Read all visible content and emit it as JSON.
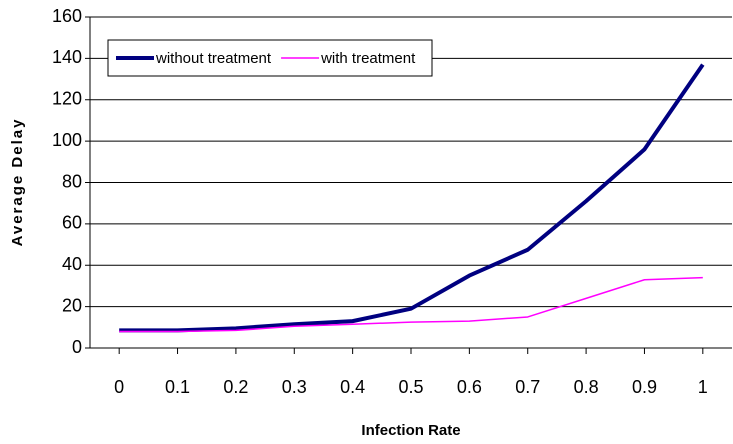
{
  "chart_data": {
    "type": "line",
    "x_label": "Infection Rate",
    "y_label": "Average Delay",
    "x": [
      0,
      0.1,
      0.2,
      0.3,
      0.4,
      0.5,
      0.6,
      0.7,
      0.8,
      0.9,
      1
    ],
    "series": [
      {
        "name": "without treatment",
        "color": "#000080",
        "values": [
          8.5,
          8.5,
          9.5,
          11.5,
          13,
          19,
          35,
          47.5,
          71,
          96,
          137
        ]
      },
      {
        "name": "with treatment",
        "color": "#ff00ff",
        "values": [
          8,
          8,
          8.5,
          10.5,
          11.5,
          12.5,
          13,
          15,
          24,
          33,
          34
        ]
      }
    ],
    "xlim": [
      -0.05,
      1.05
    ],
    "xticks": [
      0,
      0.1,
      0.2,
      0.3,
      0.4,
      0.5,
      0.6,
      0.7,
      0.8,
      0.9,
      1
    ],
    "ylim": [
      0,
      160
    ],
    "yticks": [
      0,
      20,
      40,
      60,
      80,
      100,
      120,
      140,
      160
    ],
    "grid": true,
    "legend": "upper left"
  }
}
